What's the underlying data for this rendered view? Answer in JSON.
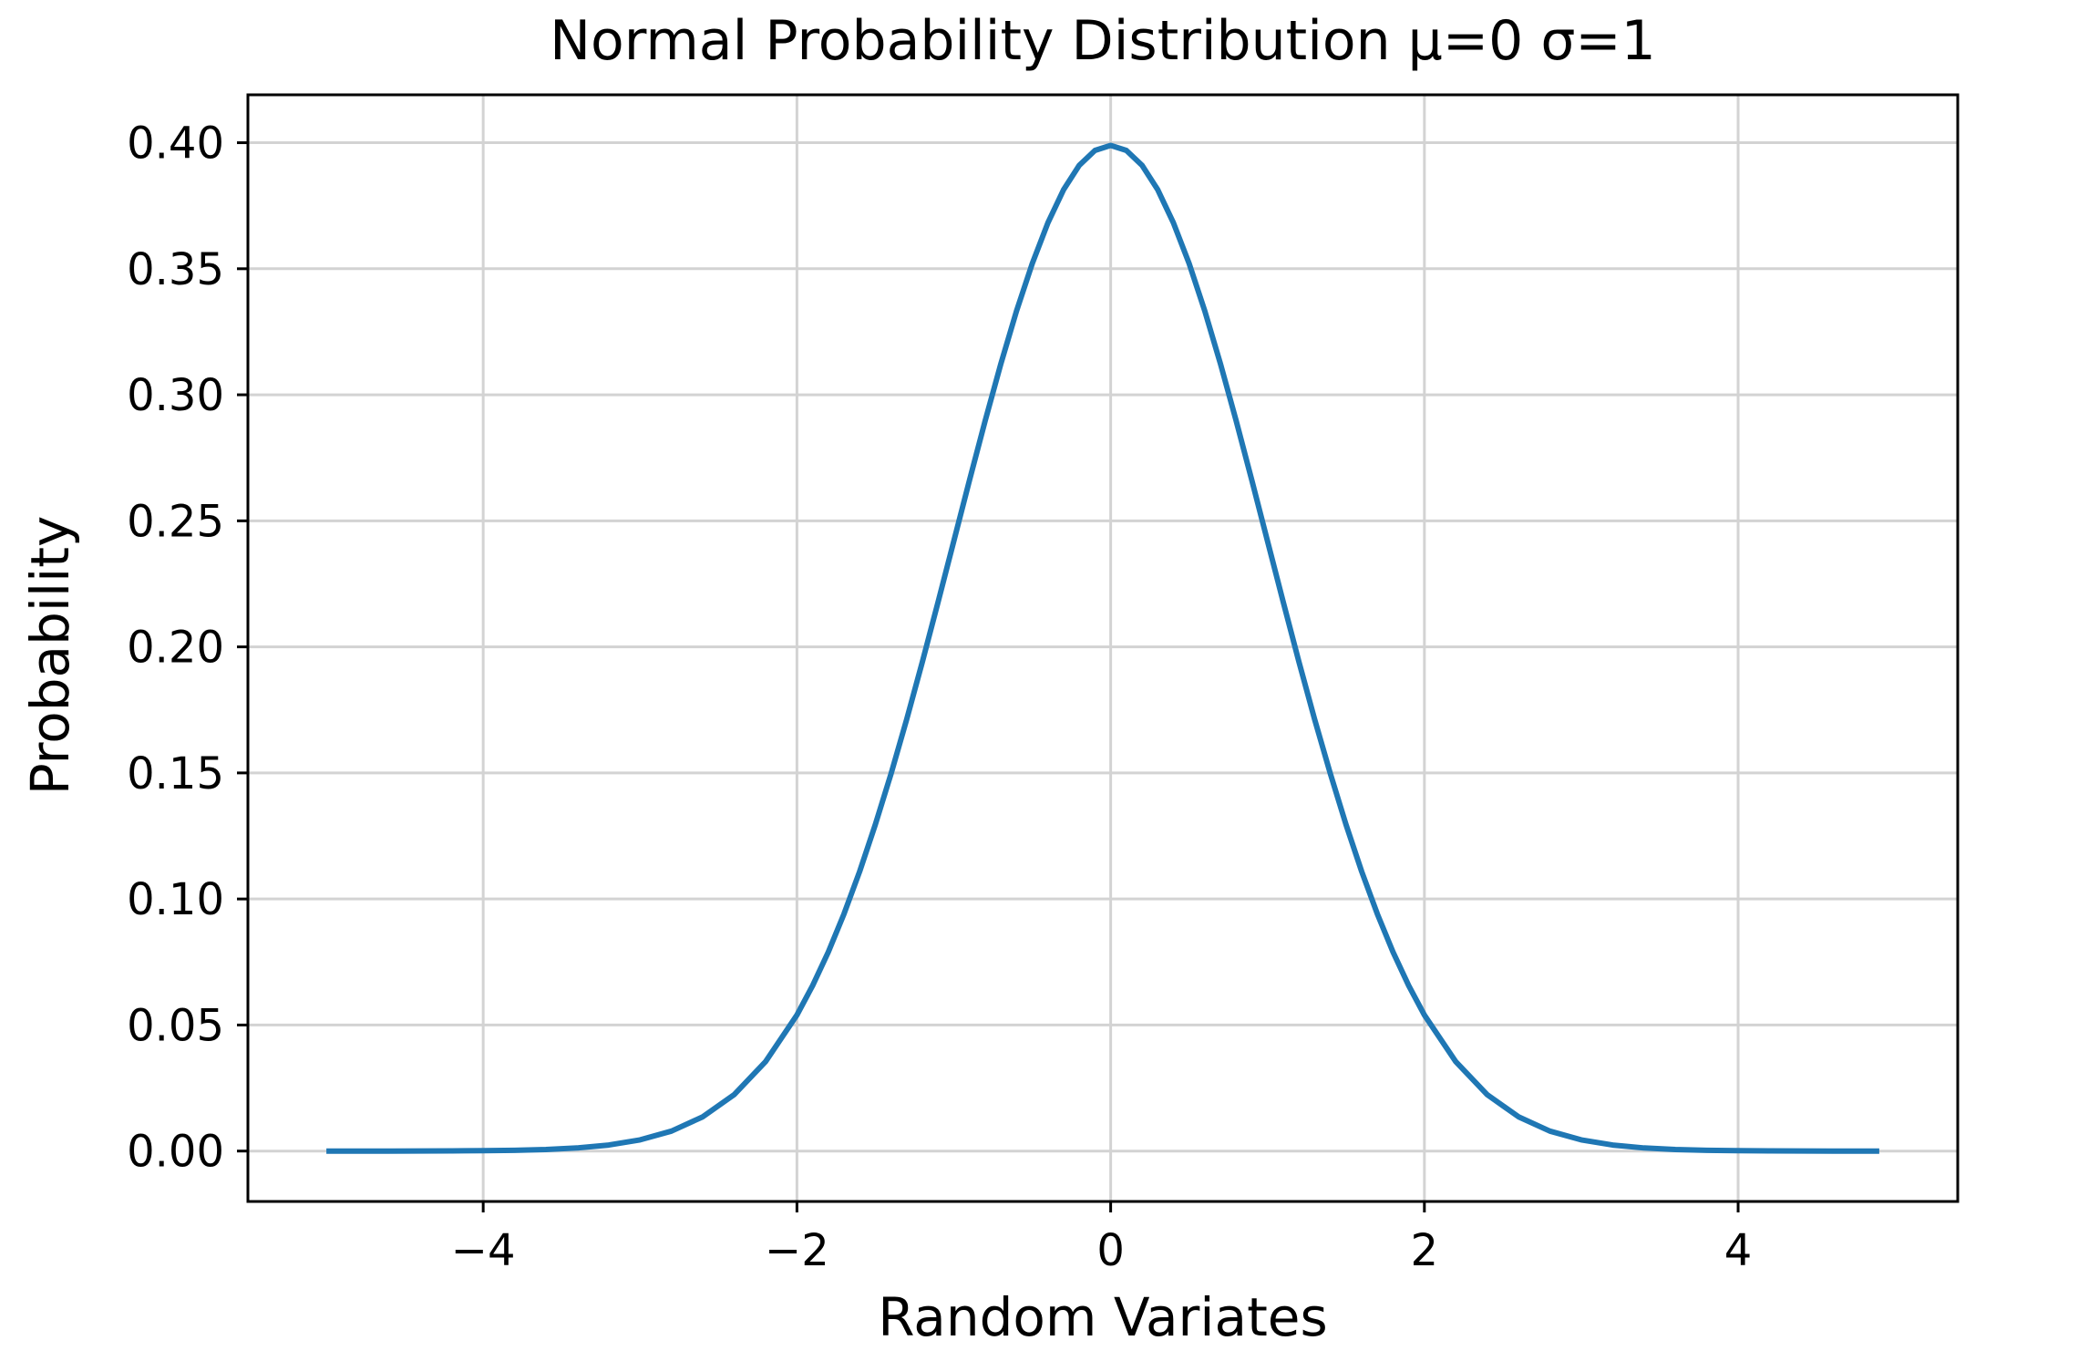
{
  "chart_data": {
    "type": "line",
    "title": "Normal Probability Distribution μ=0 σ=1",
    "xlabel": "Random Variates",
    "ylabel": "Probability",
    "xlim": [
      -5.5,
      5.4
    ],
    "ylim": [
      -0.02,
      0.419
    ],
    "xticks": [
      -4,
      -2,
      0,
      2,
      4
    ],
    "xtick_labels": [
      "−4",
      "−2",
      "0",
      "2",
      "4"
    ],
    "yticks": [
      0.0,
      0.05,
      0.1,
      0.15,
      0.2,
      0.25,
      0.3,
      0.35,
      0.4
    ],
    "ytick_labels": [
      "0.00",
      "0.05",
      "0.10",
      "0.15",
      "0.20",
      "0.25",
      "0.30",
      "0.35",
      "0.40"
    ],
    "grid": true,
    "colors": {
      "line": "#1f77b4"
    },
    "series": [
      {
        "x": [
          -5.0,
          -4.8,
          -4.6,
          -4.4,
          -4.2,
          -4.0,
          -3.8,
          -3.6,
          -3.4,
          -3.2,
          -3.0,
          -2.8,
          -2.6,
          -2.4,
          -2.2,
          -2.0,
          -1.9,
          -1.8,
          -1.7,
          -1.6,
          -1.5,
          -1.4,
          -1.3,
          -1.2,
          -1.1,
          -1.0,
          -0.9,
          -0.8,
          -0.7,
          -0.6,
          -0.5,
          -0.4,
          -0.3,
          -0.2,
          -0.1,
          0.0,
          0.1,
          0.2,
          0.3,
          0.4,
          0.5,
          0.6,
          0.7,
          0.8,
          0.9,
          1.0,
          1.1,
          1.2,
          1.3,
          1.4,
          1.5,
          1.6,
          1.7,
          1.8,
          1.9,
          2.0,
          2.2,
          2.4,
          2.6,
          2.8,
          3.0,
          3.2,
          3.4,
          3.6,
          3.8,
          4.0,
          4.2,
          4.4,
          4.6,
          4.9
        ],
        "y": [
          1.5e-06,
          3.9e-06,
          1.01e-05,
          2.44e-05,
          5.89e-05,
          0.0001338,
          0.0002919,
          0.0006119,
          0.0012322,
          0.0023841,
          0.0044318,
          0.0079155,
          0.013583,
          0.0223945,
          0.0354746,
          0.053991,
          0.0656158,
          0.0789502,
          0.0940491,
          0.1109208,
          0.1295176,
          0.1497275,
          0.1713686,
          0.1941861,
          0.2178522,
          0.2419707,
          0.2660852,
          0.2896916,
          0.3122539,
          0.3332246,
          0.3520653,
          0.3682701,
          0.3813878,
          0.3910427,
          0.3969525,
          0.3989423,
          0.3969525,
          0.3910427,
          0.3813878,
          0.3682701,
          0.3520653,
          0.3332246,
          0.3122539,
          0.2896916,
          0.2660852,
          0.2419707,
          0.2178522,
          0.1941861,
          0.1713686,
          0.1497275,
          0.1295176,
          0.1109208,
          0.0940491,
          0.0789502,
          0.0656158,
          0.053991,
          0.0354746,
          0.0223945,
          0.013583,
          0.0079155,
          0.0044318,
          0.0023841,
          0.0012322,
          0.0006119,
          0.0002919,
          0.0001338,
          5.89e-05,
          2.44e-05,
          1.01e-05,
          2.4e-06
        ]
      }
    ]
  }
}
